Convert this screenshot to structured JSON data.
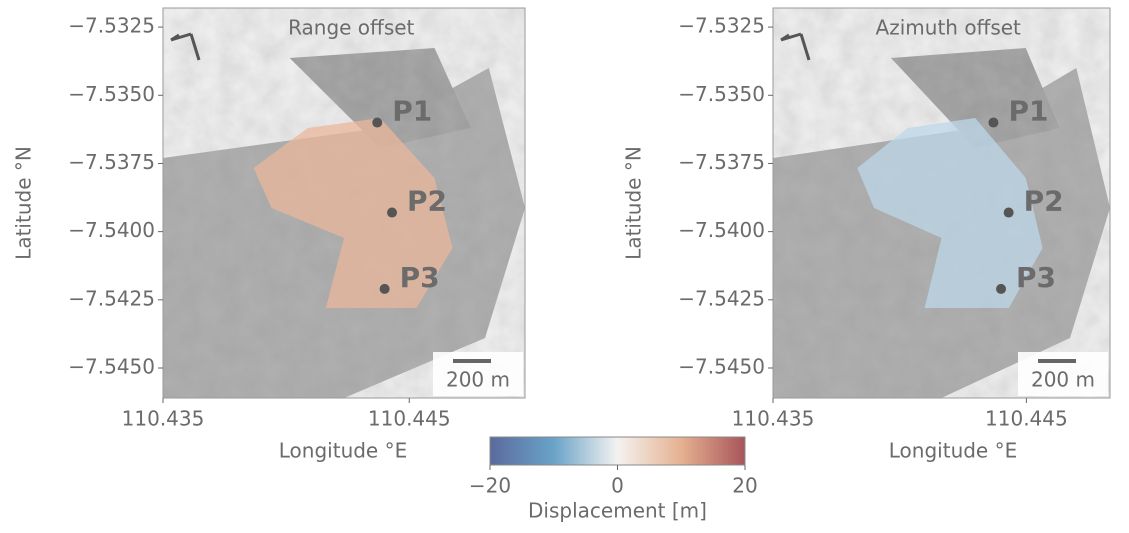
{
  "chart_data": [
    {
      "type": "map",
      "title": "Range offset",
      "xlabel": "Longitude °E",
      "ylabel": "Latitude °N",
      "xlim": [
        110.435,
        110.4497
      ],
      "ylim": [
        -7.5461,
        -7.5318
      ],
      "xticks": [
        110.435,
        110.445
      ],
      "yticks": [
        {
          "value": -7.5325,
          "label": "−7.5325"
        },
        {
          "value": -7.535,
          "label": "−7.5350"
        },
        {
          "value": -7.5375,
          "label": "−7.5375"
        },
        {
          "value": -7.54,
          "label": "−7.5400"
        },
        {
          "value": -7.5425,
          "label": "−7.5425"
        },
        {
          "value": -7.545,
          "label": "−7.5450"
        }
      ],
      "points": [
        {
          "label": "P1",
          "x": 110.4437,
          "y": -7.536
        },
        {
          "label": "P2",
          "x": 110.4443,
          "y": -7.5393
        },
        {
          "label": "P3",
          "x": 110.444,
          "y": -7.5421
        }
      ],
      "scale_bar": "200 m",
      "tint": "#e9b79b"
    },
    {
      "type": "map",
      "title": "Azimuth offset",
      "xlabel": "Longitude °E",
      "ylabel": "Latitude °N",
      "xlim": [
        110.435,
        110.4483
      ],
      "ylim": [
        -7.5461,
        -7.5318
      ],
      "xticks": [
        110.435,
        110.445
      ],
      "yticks": [
        {
          "value": -7.5325,
          "label": "−7.5325"
        },
        {
          "value": -7.535,
          "label": "−7.5350"
        },
        {
          "value": -7.5375,
          "label": "−7.5375"
        },
        {
          "value": -7.54,
          "label": "−7.5400"
        },
        {
          "value": -7.5425,
          "label": "−7.5425"
        },
        {
          "value": -7.545,
          "label": "−7.5450"
        }
      ],
      "points": [
        {
          "label": "P1",
          "x": 110.4437,
          "y": -7.536
        },
        {
          "label": "P2",
          "x": 110.4443,
          "y": -7.5393
        },
        {
          "label": "P3",
          "x": 110.444,
          "y": -7.5421
        }
      ],
      "scale_bar": "200 m",
      "tint": "#bcd8e8"
    }
  ],
  "colorbar": {
    "label": "Displacement [m]",
    "clim": [
      -20,
      20
    ],
    "ticks": [
      {
        "value": -20,
        "label": "−20"
      },
      0,
      20
    ]
  }
}
